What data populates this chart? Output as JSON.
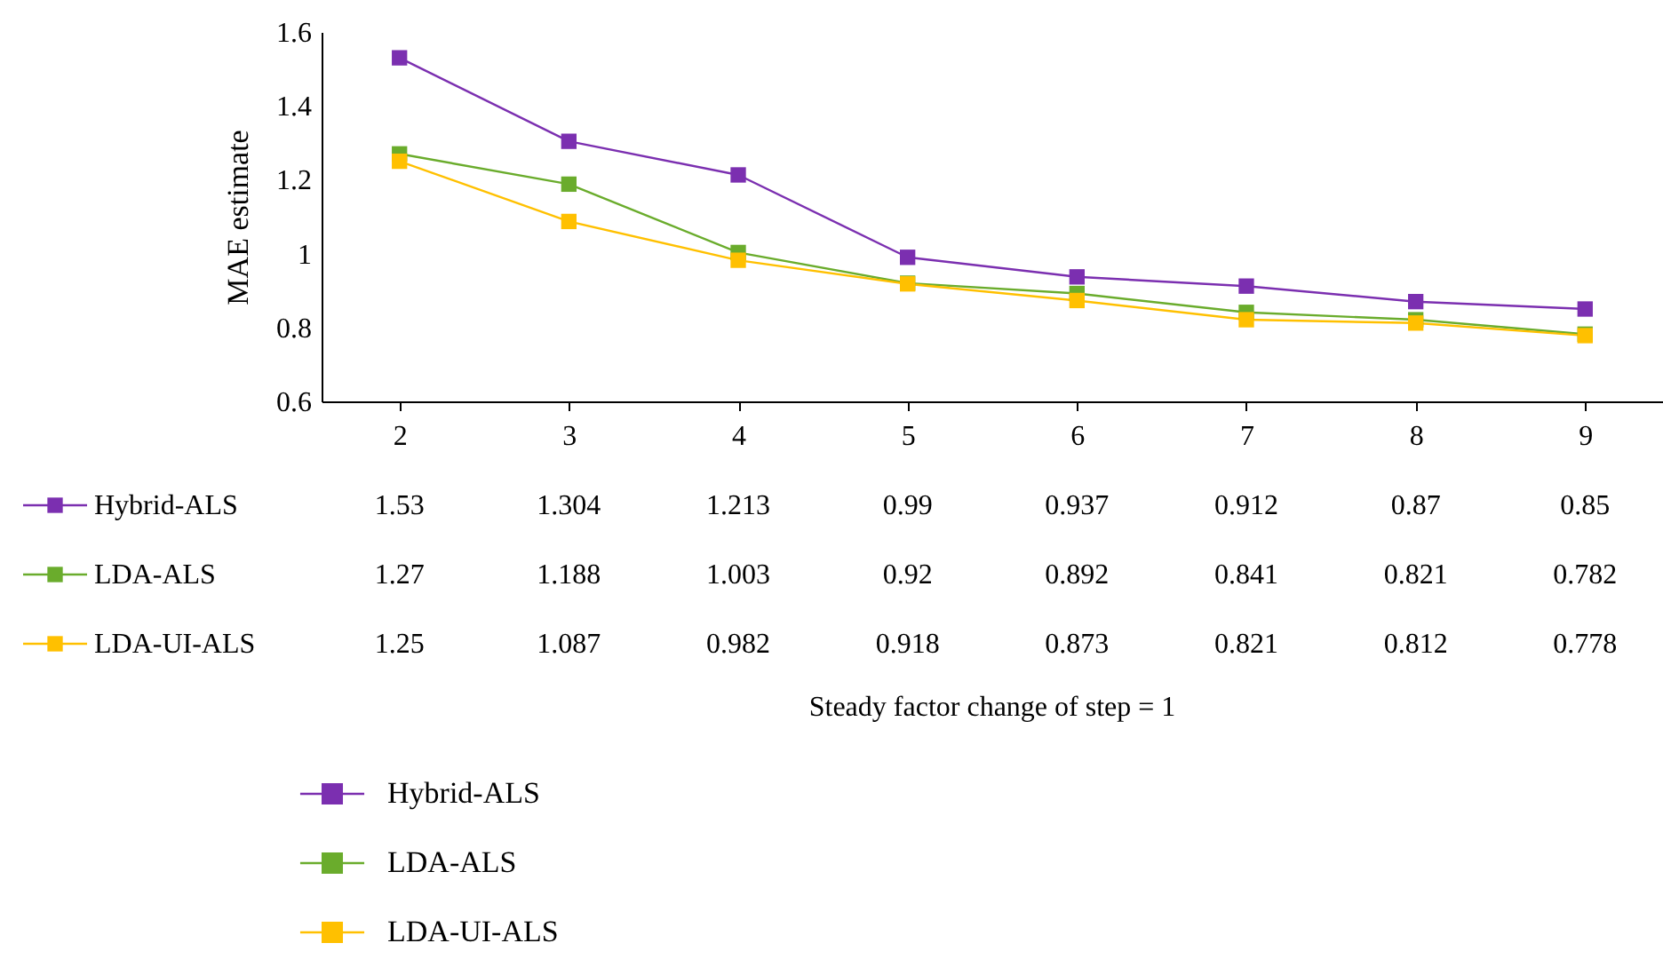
{
  "chart_data": {
    "type": "line",
    "annotations": [
      "Steady factor change of step = 1"
    ],
    "ylabel": "MAE estimate",
    "categories": [
      "2",
      "3",
      "4",
      "5",
      "6",
      "7",
      "8",
      "9"
    ],
    "series": [
      {
        "name": "Hybrid-ALS",
        "color": "#7b2fb0",
        "values": [
          1.53,
          1.304,
          1.213,
          0.99,
          0.937,
          0.912,
          0.87,
          0.85
        ]
      },
      {
        "name": "LDA-ALS",
        "color": "#6aac2c",
        "values": [
          1.27,
          1.188,
          1.003,
          0.92,
          0.892,
          0.841,
          0.821,
          0.782
        ]
      },
      {
        "name": "LDA-UI-ALS",
        "color": "#ffc000",
        "values": [
          1.25,
          1.087,
          0.982,
          0.918,
          0.873,
          0.821,
          0.812,
          0.778
        ]
      }
    ],
    "ylim": [
      0.6,
      1.6
    ],
    "yticks": [
      0.6,
      0.8,
      {
        "value": 1,
        "label": "1"
      },
      1.2,
      1.4,
      1.6
    ],
    "grid": false,
    "legend": "bottom",
    "marker": "square",
    "line_style": "solid",
    "data_labels": true
  }
}
